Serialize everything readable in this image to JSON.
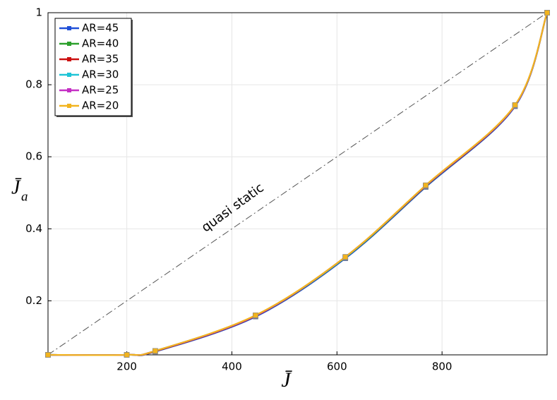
{
  "chart_data": {
    "type": "line",
    "xlabel": "J̄",
    "ylabel": "J̄",
    "ylabel_subscript": "a",
    "x": [
      50,
      200,
      254,
      445,
      616,
      769,
      939,
      1000
    ],
    "series": [
      {
        "name": "AR=45",
        "color": "#2050d8",
        "values": [
          0.05,
          0.05,
          0.059,
          0.156,
          0.318,
          0.516,
          0.74,
          1
        ]
      },
      {
        "name": "AR=40",
        "color": "#2ca02c",
        "values": [
          0.05,
          0.05,
          0.06,
          0.158,
          0.32,
          0.518,
          0.742,
          1
        ]
      },
      {
        "name": "AR=35",
        "color": "#cc1010",
        "values": [
          0.05,
          0.05,
          0.06,
          0.158,
          0.321,
          0.519,
          0.742,
          1
        ]
      },
      {
        "name": "AR=30",
        "color": "#1fc4d6",
        "values": [
          0.05,
          0.05,
          0.061,
          0.159,
          0.321,
          0.52,
          0.743,
          1
        ]
      },
      {
        "name": "AR=25",
        "color": "#c42fc4",
        "values": [
          0.05,
          0.05,
          0.061,
          0.159,
          0.322,
          0.52,
          0.743,
          1
        ]
      },
      {
        "name": "AR=20",
        "color": "#f2b41e",
        "values": [
          0.05,
          0.05,
          0.061,
          0.16,
          0.322,
          0.521,
          0.744,
          1
        ]
      }
    ],
    "reference_line": {
      "label": "quasi static",
      "x": [
        50,
        1000
      ],
      "y": [
        0.05,
        1
      ],
      "color": "#555555"
    },
    "xlim": [
      50,
      1000
    ],
    "ylim": [
      0.05,
      1
    ],
    "xticks": [
      200,
      400,
      600,
      800
    ],
    "yticks": [
      0.2,
      0.4,
      0.6,
      0.8,
      1
    ],
    "grid": true,
    "legend": "upper left"
  }
}
